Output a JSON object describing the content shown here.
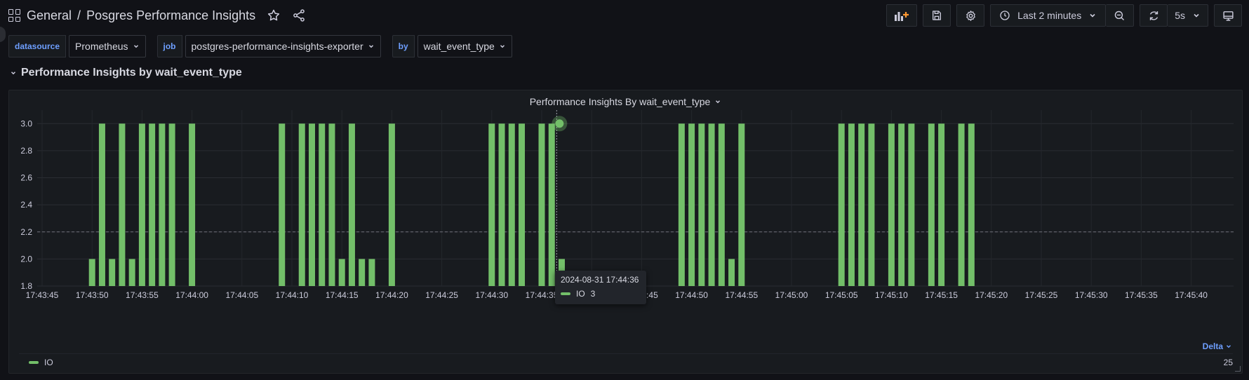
{
  "breadcrumb": {
    "folder": "General",
    "separator": "/",
    "dashboard": "Posgres Performance Insights"
  },
  "toolbar": {
    "time_range": "Last 2 minutes",
    "refresh_interval": "5s"
  },
  "variables": [
    {
      "label": "datasource",
      "value": "Prometheus"
    },
    {
      "label": "job",
      "value": "postgres-performance-insights-exporter"
    },
    {
      "label": "by",
      "value": "wait_event_type"
    }
  ],
  "row": {
    "title": "Performance Insights by wait_event_type"
  },
  "panel": {
    "title": "Performance Insights By wait_event_type",
    "legend_mode": "Delta",
    "legend_series": "IO",
    "legend_value": "25"
  },
  "tooltip": {
    "time": "2024-08-31 17:44:36",
    "series": "IO",
    "value": "3"
  },
  "colors": {
    "series": "#73bf69",
    "accent": "#6e9fff"
  },
  "chart_data": {
    "type": "bar",
    "ylim": [
      1.8,
      3.1
    ],
    "yticks": [
      "1.8",
      "2.0",
      "2.2",
      "2.4",
      "2.6",
      "2.8",
      "3.0"
    ],
    "xticks": [
      "17:43:45",
      "17:43:50",
      "17:43:55",
      "17:44:00",
      "17:44:05",
      "17:44:10",
      "17:44:15",
      "17:44:20",
      "17:44:25",
      "17:44:30",
      "17:44:35",
      "17:44:40",
      "17:44:45",
      "17:44:50",
      "17:44:55",
      "17:45:00",
      "17:45:05",
      "17:45:10",
      "17:45:15",
      "17:45:20",
      "17:45:25",
      "17:45:30",
      "17:45:35",
      "17:45:40"
    ],
    "xlim": [
      0,
      118
    ],
    "threshold": 2.2,
    "series": [
      {
        "name": "IO",
        "x": [
          5,
          6,
          7,
          8,
          9,
          10,
          11,
          12,
          13,
          15,
          24,
          26,
          27,
          28,
          29,
          30,
          31,
          32,
          33,
          35,
          45,
          46,
          47,
          48,
          50,
          51,
          52,
          64,
          65,
          66,
          67,
          68,
          69,
          70,
          80,
          81,
          82,
          83,
          85,
          86,
          87,
          89,
          90,
          92,
          93
        ],
        "values": [
          2,
          3,
          2,
          3,
          2,
          3,
          3,
          3,
          3,
          3,
          3,
          3,
          3,
          3,
          3,
          2,
          3,
          2,
          2,
          3,
          3,
          3,
          3,
          3,
          3,
          3,
          2,
          3,
          3,
          3,
          3,
          3,
          2,
          3,
          3,
          3,
          3,
          3,
          3,
          3,
          3,
          3,
          3,
          3,
          3
        ]
      }
    ]
  }
}
